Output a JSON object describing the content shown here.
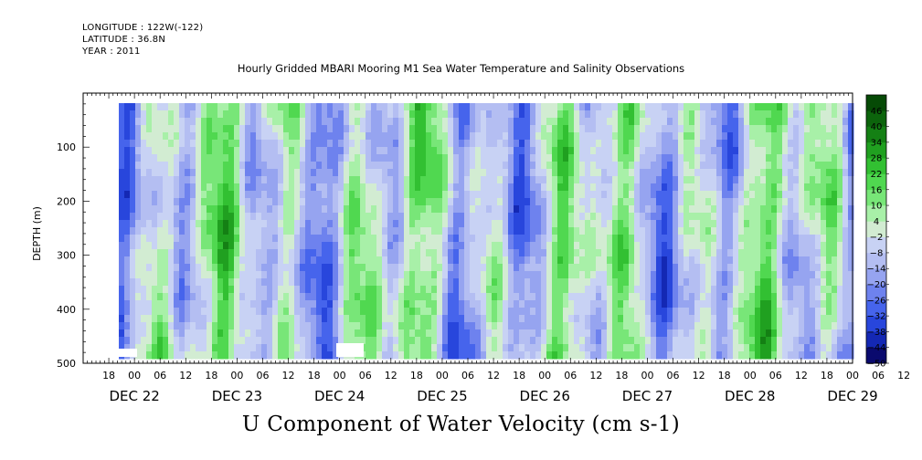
{
  "meta": {
    "longitude": "LONGITUDE : 122W(-122)",
    "latitude": "LATITUDE : 36.8N",
    "year": "YEAR : 2011"
  },
  "chart_data": {
    "type": "heatmap",
    "title": "Hourly Gridded MBARI Mooring M1 Sea Water Temperature and Salinity Observations",
    "xlabel": "U Component of Water Velocity (cm s-1)",
    "ylabel": "DEPTH (m)",
    "x_hour_ticks": [
      "18",
      "00",
      "06",
      "12",
      "18",
      "00",
      "06",
      "12",
      "18",
      "00",
      "06",
      "12",
      "18",
      "00",
      "06",
      "12",
      "18",
      "00",
      "06",
      "12",
      "18",
      "00",
      "06",
      "12",
      "18",
      "00",
      "06",
      "12",
      "18",
      "00",
      "06",
      "12"
    ],
    "x_date_labels": [
      "DEC 22",
      "DEC 23",
      "DEC 24",
      "DEC 25",
      "DEC 26",
      "DEC 27",
      "DEC 28",
      "DEC 29"
    ],
    "x_range_hours": [
      0,
      180
    ],
    "y_ticks": [
      100,
      200,
      300,
      400,
      500
    ],
    "y_tick_labels": [
      "100",
      "200",
      "300",
      "400",
      "500"
    ],
    "ylim": [
      500,
      0
    ],
    "data_depth_range": [
      20,
      490
    ],
    "colorbar_labels": [
      "46",
      "40",
      "34",
      "28",
      "22",
      "16",
      "10",
      "4",
      "-2",
      "-8",
      "-14",
      "-20",
      "-26",
      "-32",
      "-38",
      "-44",
      "-50"
    ],
    "colorbar_range": [
      -50,
      52
    ],
    "colormap": [
      "#0a0a6e",
      "#1428b4",
      "#2846dc",
      "#4664ec",
      "#6e82ee",
      "#96a4f0",
      "#b4bef2",
      "#c8d2f4",
      "#d2ecd2",
      "#a8f0a8",
      "#78e678",
      "#50d850",
      "#32c032",
      "#20a020",
      "#148014",
      "#0c640c",
      "#064a06"
    ],
    "series": [
      {
        "name": "U",
        "z_description": "alternating positive (green) and negative (blue) vertical bands"
      }
    ],
    "grid": false
  }
}
